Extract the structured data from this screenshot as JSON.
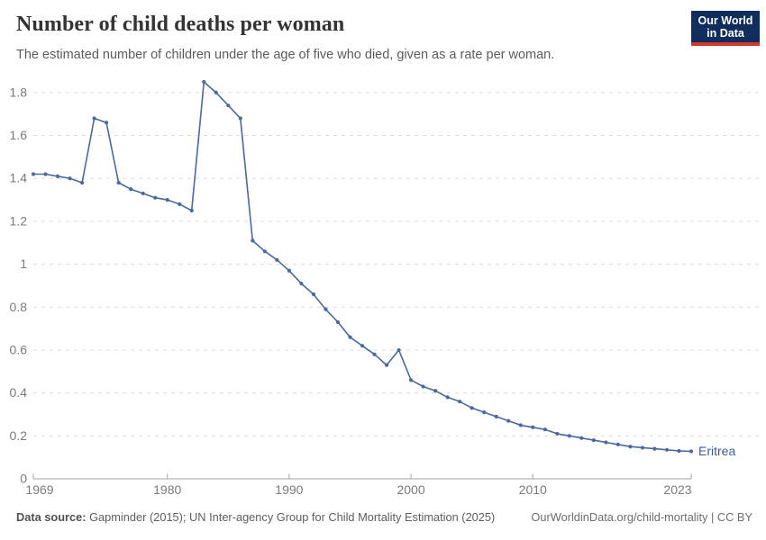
{
  "header": {
    "title": "Number of child deaths per woman",
    "subtitle": "The estimated number of children under the age of five who died, given as a rate per woman.",
    "logo": {
      "line1": "Our World",
      "line2": "in Data",
      "bg_color": "#102d5e",
      "accent_color": "#d13a2b"
    }
  },
  "chart_data": {
    "type": "line",
    "title": "Number of child deaths per woman",
    "xlabel": "",
    "ylabel": "",
    "grid": "horizontal-dashed",
    "legend_position": "end-of-line",
    "xlim": [
      1969,
      2023
    ],
    "ylim": [
      0,
      1.9
    ],
    "xticks": [
      1969,
      1980,
      1990,
      2000,
      2010,
      2023
    ],
    "yticks": [
      0,
      0.2,
      0.4,
      0.6,
      0.8,
      1,
      1.2,
      1.4,
      1.6,
      1.8
    ],
    "line_color": "#4a69a0",
    "entity_label_color": "#3d5c94",
    "series": [
      {
        "name": "Eritrea",
        "x": [
          1969,
          1970,
          1971,
          1972,
          1973,
          1974,
          1975,
          1976,
          1977,
          1978,
          1979,
          1980,
          1981,
          1982,
          1983,
          1984,
          1985,
          1986,
          1987,
          1988,
          1989,
          1990,
          1991,
          1992,
          1993,
          1994,
          1995,
          1996,
          1997,
          1998,
          1999,
          2000,
          2001,
          2002,
          2003,
          2004,
          2005,
          2006,
          2007,
          2008,
          2009,
          2010,
          2011,
          2012,
          2013,
          2014,
          2015,
          2016,
          2017,
          2018,
          2019,
          2020,
          2021,
          2022,
          2023
        ],
        "values": [
          1.42,
          1.42,
          1.41,
          1.4,
          1.38,
          1.68,
          1.66,
          1.38,
          1.35,
          1.33,
          1.31,
          1.3,
          1.28,
          1.25,
          1.85,
          1.8,
          1.74,
          1.68,
          1.11,
          1.06,
          1.02,
          0.97,
          0.91,
          0.86,
          0.79,
          0.73,
          0.66,
          0.62,
          0.58,
          0.53,
          0.6,
          0.46,
          0.43,
          0.41,
          0.38,
          0.36,
          0.33,
          0.31,
          0.29,
          0.27,
          0.25,
          0.24,
          0.23,
          0.21,
          0.2,
          0.19,
          0.18,
          0.17,
          0.16,
          0.15,
          0.145,
          0.14,
          0.135,
          0.13,
          0.128
        ]
      }
    ]
  },
  "footer": {
    "source_label": "Data source:",
    "source_text": " Gapminder (2015); UN Inter-agency Group for Child Mortality Estimation (2025)",
    "link_text": "OurWorldinData.org/child-mortality | CC BY"
  }
}
